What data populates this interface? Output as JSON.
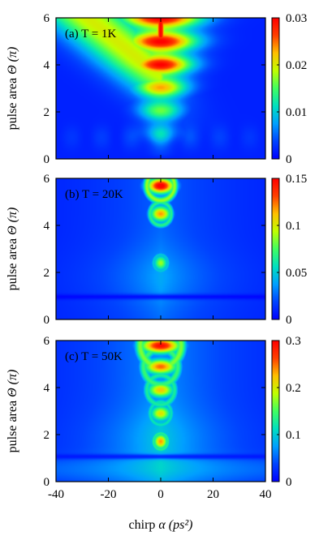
{
  "chart_data": [
    {
      "type": "heatmap",
      "panel_label": "(a) T = 1K",
      "ylabel": "pulse area",
      "ylabel_symbol": "Θ (π)",
      "xlim": [
        -40,
        40
      ],
      "ylim": [
        0,
        6
      ],
      "x_ticks": [
        "-40",
        "-20",
        "0",
        "20",
        "40"
      ],
      "y_ticks": [
        "0",
        "2",
        "4",
        "6"
      ],
      "colorbar_range": [
        0,
        0.03
      ],
      "colorbar_ticks": [
        "0",
        "0.01",
        "0.02",
        "0.03"
      ],
      "features": {
        "broad_background_peak": 0.021,
        "central_max": 0.03,
        "central_lobes_at_theta": [
          2,
          4,
          6
        ]
      }
    },
    {
      "type": "heatmap",
      "panel_label": "(b) T = 20K",
      "ylabel": "pulse area",
      "ylabel_symbol": "Θ (π)",
      "xlim": [
        -40,
        40
      ],
      "ylim": [
        0,
        6
      ],
      "x_ticks": [
        "-40",
        "-20",
        "0",
        "20",
        "40"
      ],
      "y_ticks": [
        "0",
        "2",
        "4",
        "6"
      ],
      "colorbar_range": [
        0,
        0.15
      ],
      "colorbar_ticks": [
        "0",
        "0.05",
        "0.1",
        "0.15"
      ],
      "features": {
        "central_lobes_at_theta": [
          2.4,
          4.5,
          5.7
        ],
        "central_max": 0.15,
        "dark_band_at_theta": 0.95
      }
    },
    {
      "type": "heatmap",
      "panel_label": "(c) T = 50K",
      "ylabel": "pulse area",
      "ylabel_symbol": "Θ (π)",
      "xlim": [
        -40,
        40
      ],
      "ylim": [
        0,
        6
      ],
      "x_ticks": [
        "-40",
        "-20",
        "0",
        "20",
        "40"
      ],
      "y_ticks": [
        "0",
        "2",
        "4",
        "6"
      ],
      "colorbar_range": [
        0,
        0.3
      ],
      "colorbar_ticks": [
        "0",
        "0.1",
        "0.2",
        "0.3"
      ],
      "features": {
        "central_lobes_at_theta": [
          1.7,
          2.9,
          3.9,
          4.9,
          5.8
        ],
        "central_max": 0.3,
        "dark_band_at_theta": 1.05
      }
    }
  ],
  "xlabel": "chirp",
  "xlabel_symbol": "α (ps²)",
  "colormap": [
    "#0000ff",
    "#0044ff",
    "#00a0ff",
    "#00e0c0",
    "#40ff60",
    "#c0ff00",
    "#ffc000",
    "#ff4000",
    "#ff0000"
  ]
}
